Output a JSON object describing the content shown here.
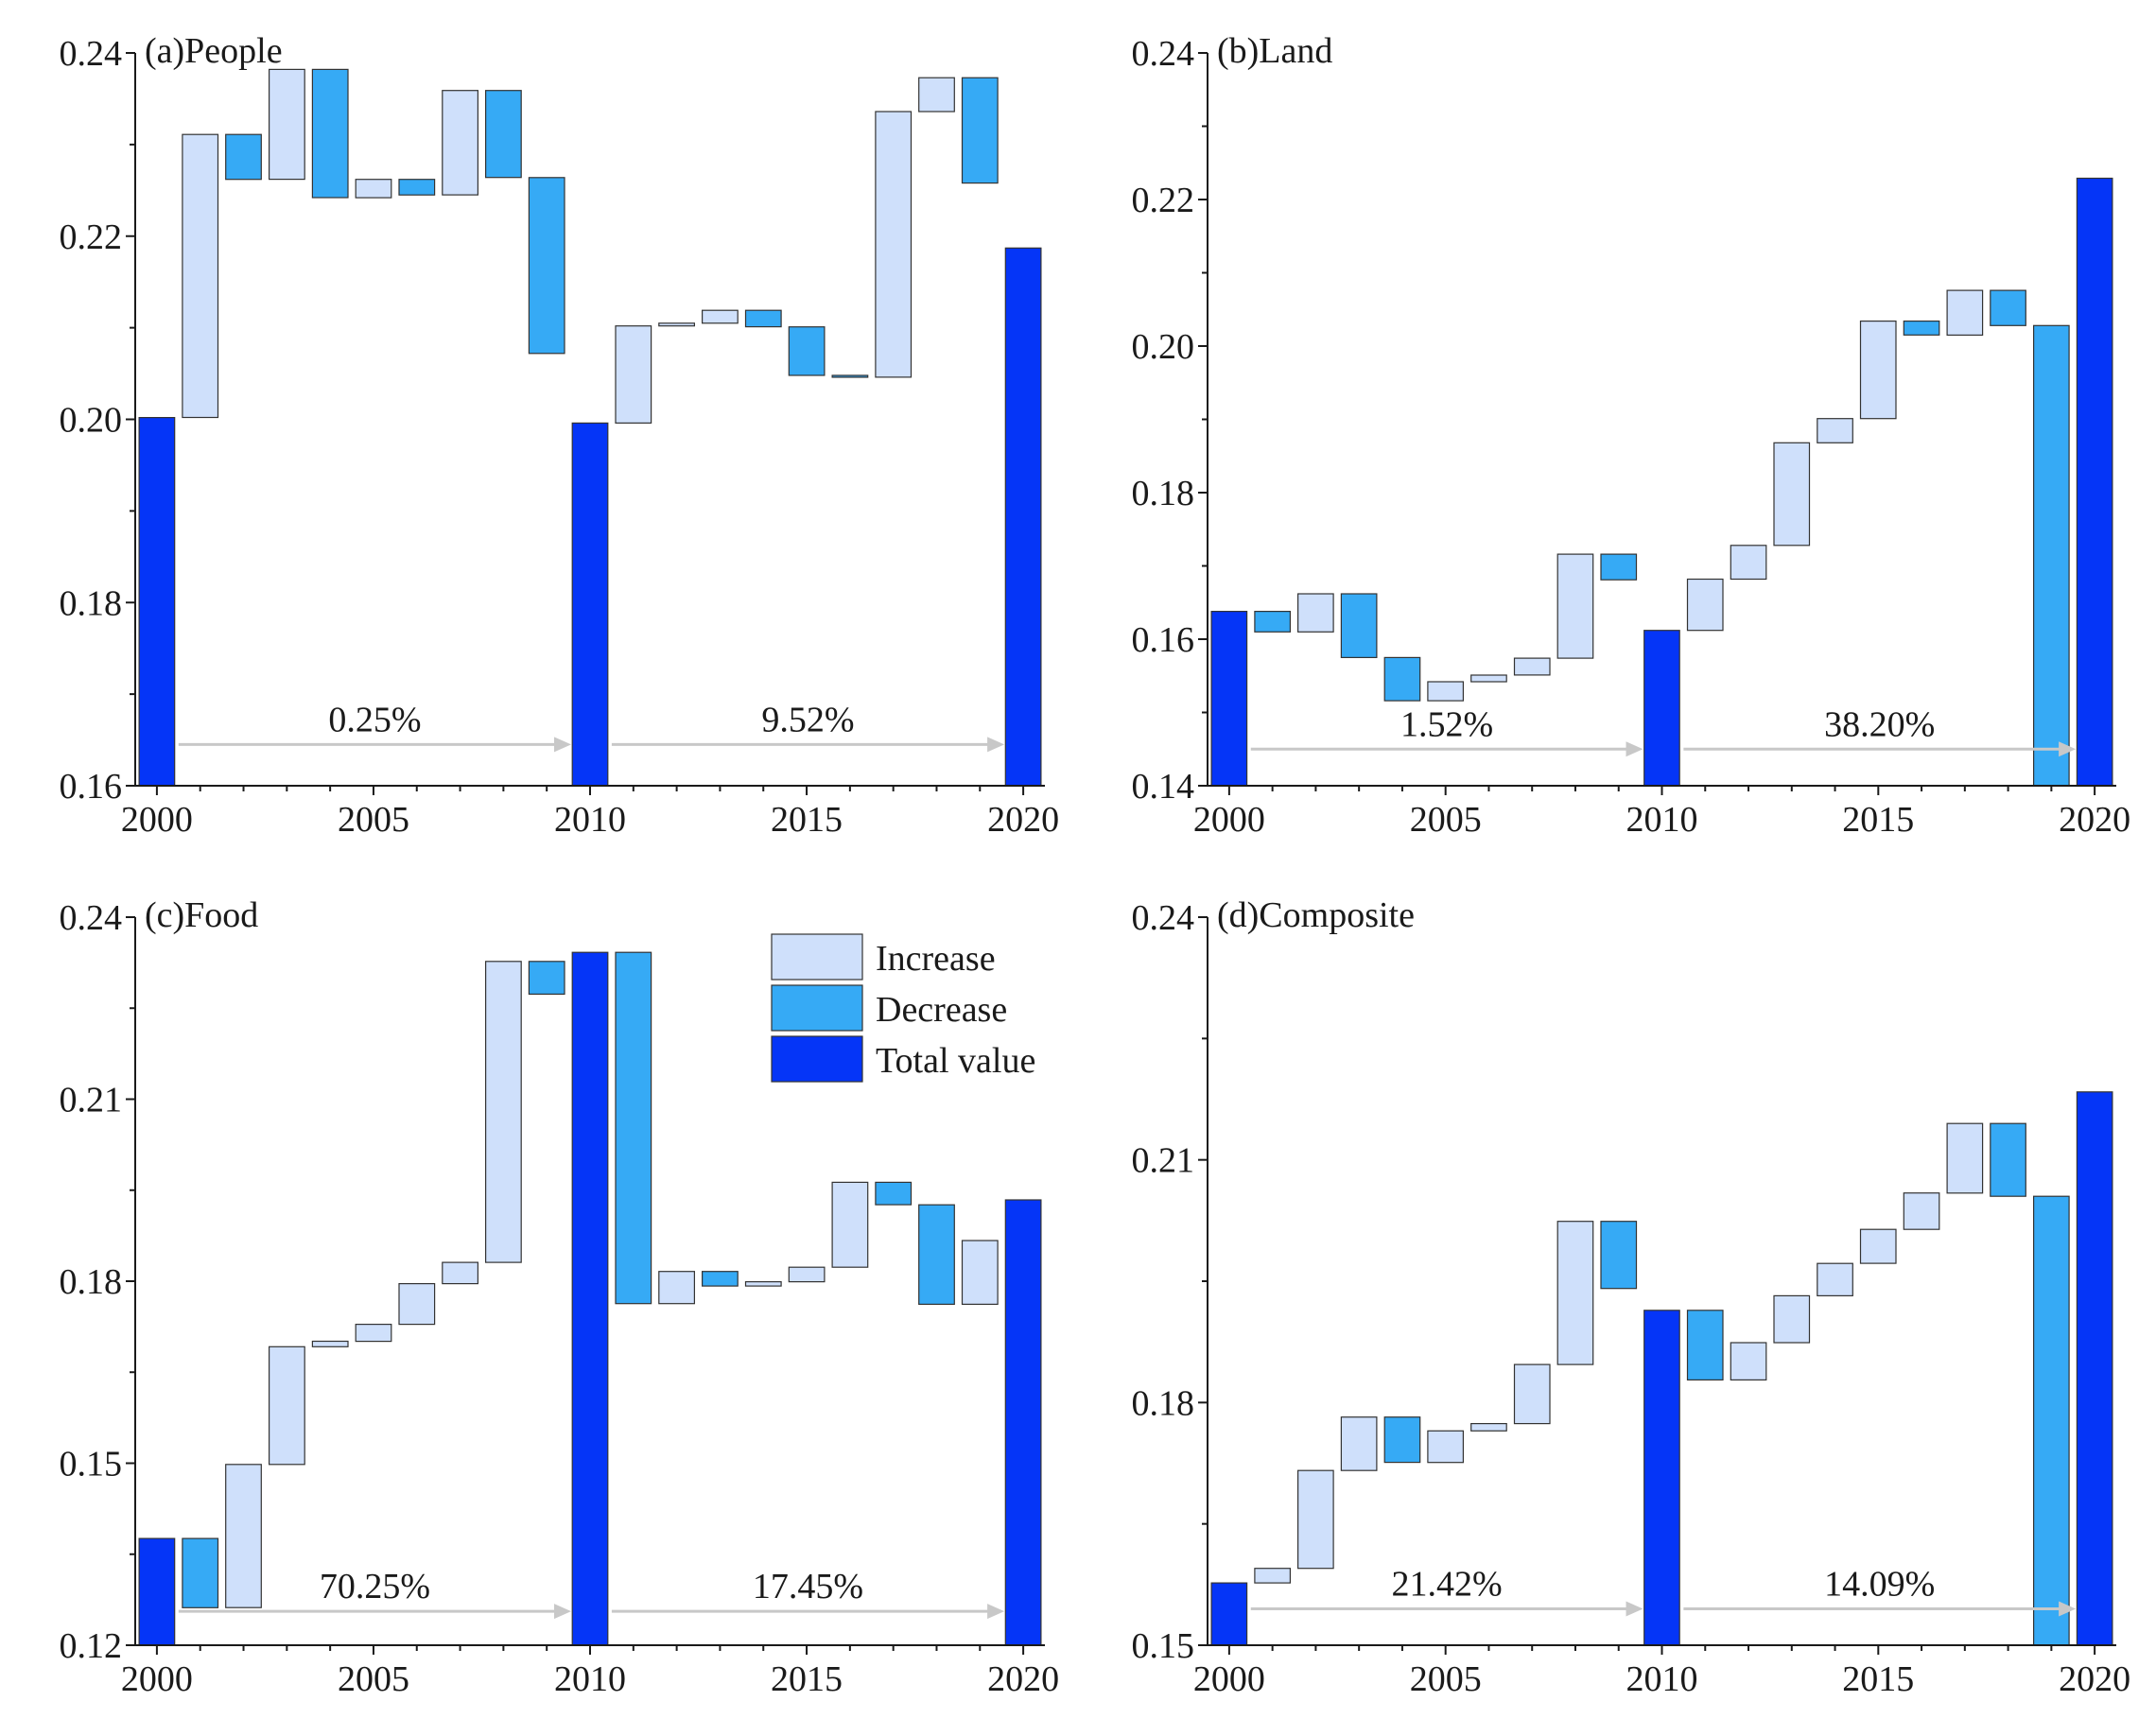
{
  "colors": {
    "increase": "#cfe0fb",
    "decrease": "#36aaf5",
    "total": "#0535f7",
    "arrow": "#c8c8c8"
  },
  "legend": {
    "items": [
      {
        "key": "increase",
        "label": "Increase"
      },
      {
        "key": "decrease",
        "label": "Decrease"
      },
      {
        "key": "total",
        "label": "Total value"
      }
    ]
  },
  "chart_data": [
    {
      "type": "waterfall",
      "title": "(a)People",
      "xticks": [
        2000,
        2005,
        2010,
        2015,
        2020
      ],
      "xlim": [
        1999.5,
        2020.5
      ],
      "ylim": [
        0.16,
        0.24
      ],
      "yticks": [
        "0.16",
        "0.18",
        "0.20",
        "0.22",
        "0.24"
      ],
      "bars": [
        {
          "x": 2000,
          "kind": "total",
          "start": 0.16,
          "end": 0.2002
        },
        {
          "x": 2001,
          "kind": "increase",
          "start": 0.2002,
          "end": 0.2311
        },
        {
          "x": 2002,
          "kind": "decrease",
          "start": 0.2311,
          "end": 0.2262
        },
        {
          "x": 2003,
          "kind": "increase",
          "start": 0.2262,
          "end": 0.2382
        },
        {
          "x": 2004,
          "kind": "decrease",
          "start": 0.2382,
          "end": 0.2242
        },
        {
          "x": 2005,
          "kind": "increase",
          "start": 0.2242,
          "end": 0.2262
        },
        {
          "x": 2006,
          "kind": "decrease",
          "start": 0.2262,
          "end": 0.2245
        },
        {
          "x": 2007,
          "kind": "increase",
          "start": 0.2245,
          "end": 0.2359
        },
        {
          "x": 2008,
          "kind": "decrease",
          "start": 0.2359,
          "end": 0.2264
        },
        {
          "x": 2009,
          "kind": "decrease",
          "start": 0.2264,
          "end": 0.2072
        },
        {
          "x": 2010,
          "kind": "total",
          "start": 0.16,
          "end": 0.1996
        },
        {
          "x": 2011,
          "kind": "increase",
          "start": 0.1996,
          "end": 0.2102
        },
        {
          "x": 2012,
          "kind": "increase",
          "start": 0.2102,
          "end": 0.2105
        },
        {
          "x": 2013,
          "kind": "increase",
          "start": 0.2105,
          "end": 0.2119
        },
        {
          "x": 2014,
          "kind": "decrease",
          "start": 0.2119,
          "end": 0.2101
        },
        {
          "x": 2015,
          "kind": "decrease",
          "start": 0.2101,
          "end": 0.2048
        },
        {
          "x": 2016,
          "kind": "decrease",
          "start": 0.2048,
          "end": 0.2046
        },
        {
          "x": 2017,
          "kind": "increase",
          "start": 0.2046,
          "end": 0.2336
        },
        {
          "x": 2018,
          "kind": "increase",
          "start": 0.2336,
          "end": 0.2373
        },
        {
          "x": 2019,
          "kind": "decrease",
          "start": 0.2373,
          "end": 0.2258
        },
        {
          "x": 2020,
          "kind": "total",
          "start": 0.16,
          "end": 0.2187
        }
      ],
      "annotations": [
        {
          "label": "0.25%",
          "from": 2000.5,
          "to": 2010,
          "y": 0.1645
        },
        {
          "label": "9.52%",
          "from": 2010.5,
          "to": 2020,
          "y": 0.1645
        }
      ]
    },
    {
      "type": "waterfall",
      "title": "(b)Land",
      "xticks": [
        2000,
        2005,
        2010,
        2015,
        2020
      ],
      "xlim": [
        1999.5,
        2020.5
      ],
      "ylim": [
        0.14,
        0.24
      ],
      "yticks": [
        "0.14",
        "0.16",
        "0.18",
        "0.20",
        "0.22",
        "0.24"
      ],
      "bars": [
        {
          "x": 2000,
          "kind": "total",
          "start": 0.14,
          "end": 0.1638
        },
        {
          "x": 2001,
          "kind": "decrease",
          "start": 0.1638,
          "end": 0.161
        },
        {
          "x": 2002,
          "kind": "increase",
          "start": 0.161,
          "end": 0.1662
        },
        {
          "x": 2003,
          "kind": "decrease",
          "start": 0.1662,
          "end": 0.1575
        },
        {
          "x": 2004,
          "kind": "decrease",
          "start": 0.1575,
          "end": 0.1516
        },
        {
          "x": 2005,
          "kind": "increase",
          "start": 0.1516,
          "end": 0.1542
        },
        {
          "x": 2006,
          "kind": "increase",
          "start": 0.1542,
          "end": 0.1551
        },
        {
          "x": 2007,
          "kind": "increase",
          "start": 0.1551,
          "end": 0.1574
        },
        {
          "x": 2008,
          "kind": "increase",
          "start": 0.1574,
          "end": 0.1716
        },
        {
          "x": 2009,
          "kind": "decrease",
          "start": 0.1716,
          "end": 0.1681
        },
        {
          "x": 2010,
          "kind": "total",
          "start": 0.14,
          "end": 0.1612
        },
        {
          "x": 2011,
          "kind": "increase",
          "start": 0.1612,
          "end": 0.1682
        },
        {
          "x": 2012,
          "kind": "increase",
          "start": 0.1682,
          "end": 0.1728
        },
        {
          "x": 2013,
          "kind": "increase",
          "start": 0.1728,
          "end": 0.1868
        },
        {
          "x": 2014,
          "kind": "increase",
          "start": 0.1868,
          "end": 0.1901
        },
        {
          "x": 2015,
          "kind": "increase",
          "start": 0.1901,
          "end": 0.2034
        },
        {
          "x": 2016,
          "kind": "decrease",
          "start": 0.2034,
          "end": 0.2015
        },
        {
          "x": 2017,
          "kind": "increase",
          "start": 0.2015,
          "end": 0.2076
        },
        {
          "x": 2018,
          "kind": "decrease",
          "start": 0.2076,
          "end": 0.2028
        },
        {
          "x": 2019,
          "kind": "decrease",
          "start": 0.2028,
          "end": 0.14
        },
        {
          "x": 2020,
          "kind": "total",
          "start": 0.14,
          "end": 0.2229
        }
      ],
      "annotations": [
        {
          "label": "1.52%",
          "from": 2000.5,
          "to": 2010,
          "y": 0.145
        },
        {
          "label": "38.20%",
          "from": 2010.5,
          "to": 2020,
          "y": 0.145
        }
      ]
    },
    {
      "type": "waterfall",
      "title": "(c)Food",
      "xticks": [
        2000,
        2005,
        2010,
        2015,
        2020
      ],
      "xlim": [
        1999.5,
        2020.5
      ],
      "ylim": [
        0.12,
        0.24
      ],
      "yticks": [
        "0.12",
        "0.15",
        "0.18",
        "0.21",
        "0.24"
      ],
      "bars": [
        {
          "x": 2000,
          "kind": "total",
          "start": 0.12,
          "end": 0.1376
        },
        {
          "x": 2001,
          "kind": "decrease",
          "start": 0.1376,
          "end": 0.1262
        },
        {
          "x": 2002,
          "kind": "increase",
          "start": 0.1262,
          "end": 0.1498
        },
        {
          "x": 2003,
          "kind": "increase",
          "start": 0.1498,
          "end": 0.1692
        },
        {
          "x": 2004,
          "kind": "increase",
          "start": 0.1692,
          "end": 0.1701
        },
        {
          "x": 2005,
          "kind": "increase",
          "start": 0.1701,
          "end": 0.1729
        },
        {
          "x": 2006,
          "kind": "increase",
          "start": 0.1729,
          "end": 0.1796
        },
        {
          "x": 2007,
          "kind": "increase",
          "start": 0.1796,
          "end": 0.1831
        },
        {
          "x": 2008,
          "kind": "increase",
          "start": 0.1831,
          "end": 0.2327
        },
        {
          "x": 2009,
          "kind": "decrease",
          "start": 0.2327,
          "end": 0.2273
        },
        {
          "x": 2010,
          "kind": "total",
          "start": 0.12,
          "end": 0.2342
        },
        {
          "x": 2011,
          "kind": "decrease",
          "start": 0.2342,
          "end": 0.1763
        },
        {
          "x": 2012,
          "kind": "increase",
          "start": 0.1763,
          "end": 0.1816
        },
        {
          "x": 2013,
          "kind": "decrease",
          "start": 0.1816,
          "end": 0.1792
        },
        {
          "x": 2014,
          "kind": "increase",
          "start": 0.1792,
          "end": 0.1799
        },
        {
          "x": 2015,
          "kind": "increase",
          "start": 0.1799,
          "end": 0.1823
        },
        {
          "x": 2016,
          "kind": "increase",
          "start": 0.1823,
          "end": 0.1963
        },
        {
          "x": 2017,
          "kind": "decrease",
          "start": 0.1963,
          "end": 0.1926
        },
        {
          "x": 2018,
          "kind": "decrease",
          "start": 0.1926,
          "end": 0.1762
        },
        {
          "x": 2019,
          "kind": "increase",
          "start": 0.1762,
          "end": 0.1867
        },
        {
          "x": 2020,
          "kind": "total",
          "start": 0.12,
          "end": 0.1934
        }
      ],
      "annotations": [
        {
          "label": "70.25%",
          "from": 2000.5,
          "to": 2010,
          "y": 0.1256
        },
        {
          "label": "17.45%",
          "from": 2010.5,
          "to": 2020,
          "y": 0.1256
        }
      ]
    },
    {
      "type": "waterfall",
      "title": "(d)Composite",
      "xticks": [
        2000,
        2005,
        2010,
        2015,
        2020
      ],
      "xlim": [
        1999.5,
        2020.5
      ],
      "ylim": [
        0.15,
        0.24
      ],
      "yticks": [
        "0.15",
        "0.18",
        "0.21",
        "0.24"
      ],
      "bars": [
        {
          "x": 2000,
          "kind": "total",
          "start": 0.15,
          "end": 0.1577
        },
        {
          "x": 2001,
          "kind": "increase",
          "start": 0.1577,
          "end": 0.1595
        },
        {
          "x": 2002,
          "kind": "increase",
          "start": 0.1595,
          "end": 0.1716
        },
        {
          "x": 2003,
          "kind": "increase",
          "start": 0.1716,
          "end": 0.1782
        },
        {
          "x": 2004,
          "kind": "decrease",
          "start": 0.1782,
          "end": 0.1726
        },
        {
          "x": 2005,
          "kind": "increase",
          "start": 0.1726,
          "end": 0.1765
        },
        {
          "x": 2006,
          "kind": "increase",
          "start": 0.1765,
          "end": 0.1774
        },
        {
          "x": 2007,
          "kind": "increase",
          "start": 0.1774,
          "end": 0.1847
        },
        {
          "x": 2008,
          "kind": "increase",
          "start": 0.1847,
          "end": 0.2024
        },
        {
          "x": 2009,
          "kind": "decrease",
          "start": 0.2024,
          "end": 0.1941
        },
        {
          "x": 2010,
          "kind": "total",
          "start": 0.15,
          "end": 0.1914
        },
        {
          "x": 2011,
          "kind": "decrease",
          "start": 0.1914,
          "end": 0.1828
        },
        {
          "x": 2012,
          "kind": "increase",
          "start": 0.1828,
          "end": 0.1874
        },
        {
          "x": 2013,
          "kind": "increase",
          "start": 0.1874,
          "end": 0.1932
        },
        {
          "x": 2014,
          "kind": "increase",
          "start": 0.1932,
          "end": 0.1972
        },
        {
          "x": 2015,
          "kind": "increase",
          "start": 0.1972,
          "end": 0.2014
        },
        {
          "x": 2016,
          "kind": "increase",
          "start": 0.2014,
          "end": 0.2059
        },
        {
          "x": 2017,
          "kind": "increase",
          "start": 0.2059,
          "end": 0.2145
        },
        {
          "x": 2018,
          "kind": "decrease",
          "start": 0.2145,
          "end": 0.2055
        },
        {
          "x": 2019,
          "kind": "decrease",
          "start": 0.2055,
          "end": 0.15
        },
        {
          "x": 2020,
          "kind": "total",
          "start": 0.15,
          "end": 0.2184
        }
      ],
      "annotations": [
        {
          "label": "21.42%",
          "from": 2000.5,
          "to": 2010,
          "y": 0.1545
        },
        {
          "label": "14.09%",
          "from": 2010.5,
          "to": 2020,
          "y": 0.1545
        }
      ]
    }
  ]
}
